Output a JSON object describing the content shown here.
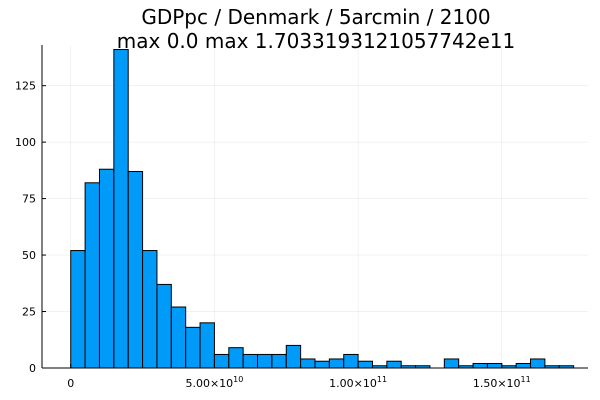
{
  "chart_data": {
    "type": "bar",
    "title_line1": "GDPpc / Denmark / 5arcmin / 2100",
    "title_line2": "max 0.0  max 1.7033193121057742e11",
    "bin_width": 5000000000,
    "bin_start": 0,
    "values": [
      52,
      82,
      88,
      141,
      87,
      52,
      37,
      27,
      18,
      20,
      6,
      9,
      6,
      6,
      6,
      10,
      4,
      3,
      4,
      6,
      3,
      1,
      3,
      1,
      1,
      0,
      4,
      1,
      2,
      2,
      1,
      2,
      4,
      1,
      1
    ],
    "xlim": [
      -10000000000,
      180000000000
    ],
    "ylim": [
      0,
      143
    ],
    "x_ticks": [
      {
        "value": 0,
        "mantissa": "0",
        "exponent": ""
      },
      {
        "value": 50000000000,
        "mantissa": "5.00×10",
        "exponent": "10"
      },
      {
        "value": 100000000000,
        "mantissa": "1.00×10",
        "exponent": "11"
      },
      {
        "value": 150000000000,
        "mantissa": "1.50×10",
        "exponent": "11"
      }
    ],
    "y_ticks": [
      0,
      25,
      50,
      75,
      100,
      125
    ],
    "grid": true,
    "legend": "none",
    "xlabel": "",
    "ylabel": ""
  },
  "colors": {
    "bar_fill": "#009af9",
    "bar_stroke": "#000000",
    "background": "#ffffff"
  }
}
